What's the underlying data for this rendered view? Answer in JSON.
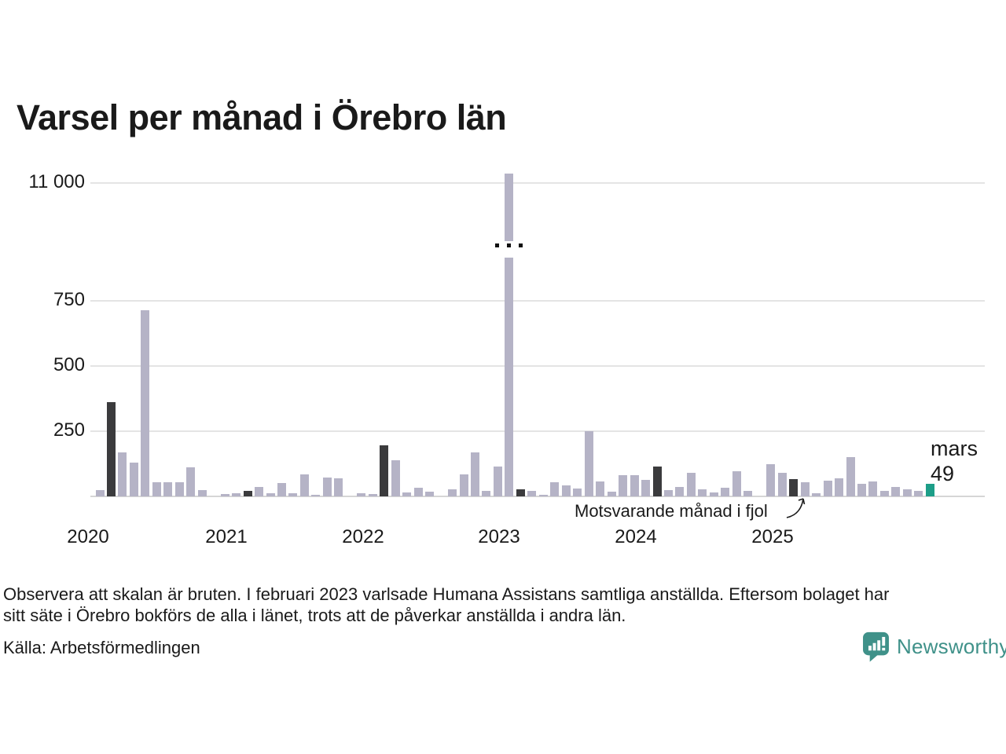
{
  "title": "Varsel per månad i Örebro län",
  "footnote_line1": "Observera att skalan är bruten. I februari 2023 varlsade Humana Assistans samtliga anställda. Eftersom bolaget har",
  "footnote_line2": "sitt säte i Örebro bokförs de alla i länet, trots att de påverkar anställda i andra län.",
  "source": "Källa: Arbetsförmedlingen",
  "brand": {
    "name": "Newsworthy",
    "color": "#3f9189"
  },
  "annotation": {
    "text": "Motsvarande månad i fjol"
  },
  "current": {
    "month_label": "mars",
    "value": "49"
  },
  "colors": {
    "bar": "#b5b3c6",
    "dark_bar": "#3b3b3d",
    "current_bar": "#1d9e88",
    "grid": "#e4e4e4",
    "baseline": "#d6d6d6",
    "text": "#1a1a1a",
    "brand_teal": "#3f9189"
  },
  "chart_data": {
    "type": "bar",
    "title": "Varsel per månad i Örebro län",
    "grid": "horizontal",
    "legend_position": "none",
    "broken_y_axis": true,
    "y_tick_labels": [
      "11 000",
      "750",
      "500",
      "250"
    ],
    "y_tick_values": [
      11000,
      750,
      500,
      250
    ],
    "x_tick_labels": [
      "2020",
      "2021",
      "2022",
      "2023",
      "2024",
      "2025"
    ],
    "bars_are_monthly": true,
    "values": [
      25,
      360,
      170,
      130,
      715,
      55,
      55,
      55,
      110,
      25,
      0,
      8,
      12,
      22,
      37,
      13,
      50,
      13,
      85,
      3,
      72,
      70,
      0,
      13,
      8,
      195,
      140,
      15,
      34,
      19,
      0,
      27,
      85,
      170,
      20,
      113,
      11200,
      27,
      20,
      7,
      55,
      43,
      30,
      250,
      57,
      17,
      80,
      80,
      62,
      115,
      25,
      35,
      90,
      27,
      14,
      32,
      97,
      22,
      0,
      122,
      90,
      65,
      55,
      12,
      60,
      70,
      150,
      47,
      58,
      22,
      37,
      28,
      22,
      49
    ],
    "dark_indices": [
      1,
      13,
      25,
      37,
      49,
      61
    ],
    "dark_meaning": "Motsvarande månad i fjol",
    "current_index": 73,
    "current_month_label": "mars",
    "current_value": 49,
    "outlier_index": 36,
    "outlier_value": 11200,
    "outlier_note": "Humana Assistans, februari 2023 — stapeln bruten över 750"
  }
}
